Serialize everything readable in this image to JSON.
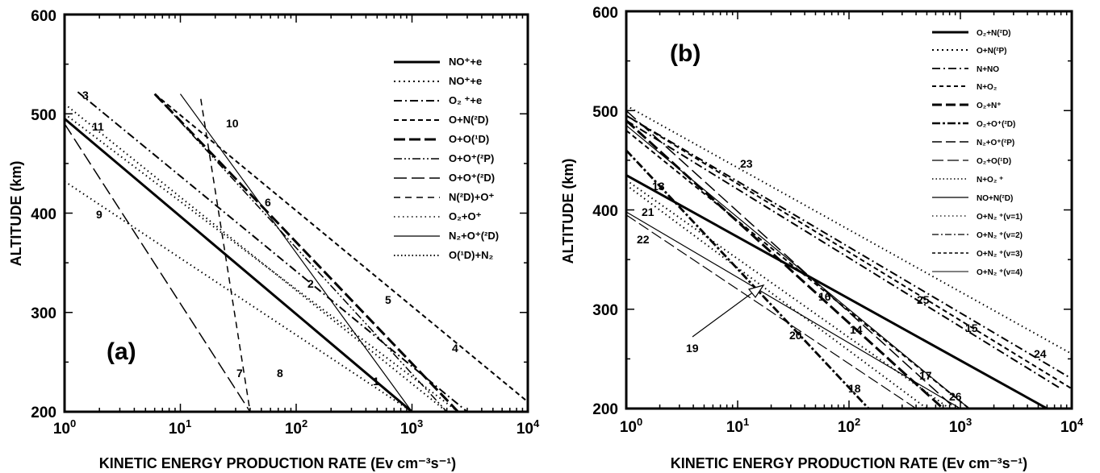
{
  "chart_data": [
    {
      "panel": "(a)",
      "type": "line",
      "xscale": "log",
      "xlim": [
        1,
        10000
      ],
      "ylim": [
        200,
        600
      ],
      "xticks": [
        "10^0",
        "10^1",
        "10^2",
        "10^3",
        "10^4"
      ],
      "yticks": [
        "200",
        "300",
        "400",
        "500",
        "600"
      ],
      "xlabel": "KINETIC ENERGY PRODUCTION RATE (Ev cm-3s-1)",
      "ylabel": "ALTITUDE (km)",
      "legend_position": "top-right",
      "series": [
        {
          "name": "NO+ +e",
          "label": "1",
          "dash": "solid-thick",
          "points": [
            [
              1,
              495
            ],
            [
              1000,
              200
            ]
          ]
        },
        {
          "name": "NO+ +e",
          "label": "2",
          "dash": "dotted",
          "points": [
            [
              1,
              510
            ],
            [
              2000,
              200
            ]
          ]
        },
        {
          "name": "O2 + +e",
          "label": "3",
          "dash": "dashdot",
          "points": [
            [
              1.3,
              522
            ],
            [
              3000,
              200
            ]
          ]
        },
        {
          "name": "O+N(2D)",
          "label": "4",
          "dash": "dashed",
          "points": [
            [
              6,
              520
            ],
            [
              10000,
              210
            ]
          ]
        },
        {
          "name": "O+O(1D)",
          "label": "5",
          "dash": "longdash-thick",
          "points": [
            [
              6,
              520
            ],
            [
              2500,
              200
            ]
          ]
        },
        {
          "name": "O+O+(2P)",
          "label": "6",
          "dash": "dashdotdot",
          "points": [
            [
              6,
              520
            ],
            [
              2000,
              200
            ]
          ]
        },
        {
          "name": "O+O+(2D)",
          "label": "7",
          "dash": "longdash",
          "points": [
            [
              1,
              490
            ],
            [
              40,
              200
            ]
          ]
        },
        {
          "name": "N(2D)+O+",
          "label": "8",
          "dash": "medium-dash",
          "points": [
            [
              15,
              515
            ],
            [
              40,
              200
            ]
          ]
        },
        {
          "name": "O2+O+",
          "label": "9",
          "dash": "dotted",
          "points": [
            [
              1,
              432
            ],
            [
              1000,
              200
            ]
          ]
        },
        {
          "name": "N2+O+(2D)",
          "label": "10",
          "dash": "solid-thin",
          "points": [
            [
              10,
              520
            ],
            [
              1000,
              200
            ]
          ]
        },
        {
          "name": "O(1D)+N2",
          "label": "11",
          "dash": "dotted",
          "points": [
            [
              1,
              500
            ],
            [
              2500,
              200
            ]
          ]
        }
      ]
    },
    {
      "panel": "(b)",
      "type": "line",
      "xscale": "log",
      "xlim": [
        1,
        10000
      ],
      "ylim": [
        200,
        600
      ],
      "xticks": [
        "10^0",
        "10^1",
        "10^2",
        "10^3",
        "10^4"
      ],
      "yticks": [
        "200",
        "300",
        "400",
        "500",
        "600"
      ],
      "xlabel": "KINETIC ENERGY PRODUCTION RATE (Ev cm-3s-1)",
      "ylabel": "ALTITUDE (km)",
      "legend_position": "top-right",
      "series": [
        {
          "name": "O2+N(2D)",
          "label": "13",
          "dash": "solid-thick",
          "points": [
            [
              1,
              435
            ],
            [
              6000,
              200
            ]
          ]
        },
        {
          "name": "O+N(2P)",
          "label": "14",
          "dash": "dotted",
          "points": [
            [
              1,
              430
            ],
            [
              800,
              200
            ]
          ]
        },
        {
          "name": "N+NO",
          "label": "15",
          "dash": "dashdot",
          "points": [
            [
              1,
              490
            ],
            [
              8000,
              220
            ]
          ]
        },
        {
          "name": "N+O2",
          "label": "16",
          "dash": "dashed",
          "points": [
            [
              1,
              480
            ],
            [
              1200,
              200
            ]
          ]
        },
        {
          "name": "O2+N+",
          "label": "17",
          "dash": "longdash-thick",
          "points": [
            [
              1,
              490
            ],
            [
              700,
              200
            ]
          ]
        },
        {
          "name": "O2+O+(2D)",
          "label": "18",
          "dash": "dashdot-thick",
          "points": [
            [
              1,
              460
            ],
            [
              150,
              200
            ]
          ]
        },
        {
          "name": "N2+O+(2P)",
          "label": "19",
          "dash": "longdash",
          "points": [
            [
              1,
              500
            ],
            [
              900,
              200
            ]
          ]
        },
        {
          "name": "O2+O(1D)",
          "label": "20",
          "dash": "longdash-thin",
          "points": [
            [
              1,
              395
            ],
            [
              400,
              200
            ]
          ]
        },
        {
          "name": "N+O2 +",
          "label": "21",
          "dash": "dotted",
          "points": [
            [
              1,
              425
            ],
            [
              500,
              200
            ]
          ]
        },
        {
          "name": "NO+N(2D)",
          "label": "22",
          "dash": "solid-thin",
          "points": [
            [
              1,
              398
            ],
            [
              1000,
              200
            ]
          ]
        },
        {
          "name": "O+N2 +(v=1)",
          "label": "23",
          "dash": "dotted",
          "points": [
            [
              1,
              505
            ],
            [
              10000,
              255
            ]
          ]
        },
        {
          "name": "O+N2 +(v=2)",
          "label": "24",
          "dash": "dashdot",
          "points": [
            [
              1,
              495
            ],
            [
              10000,
              230
            ]
          ]
        },
        {
          "name": "O+N2 +(v=3)",
          "label": "25",
          "dash": "dashed",
          "points": [
            [
              1,
              495
            ],
            [
              10000,
              220
            ]
          ]
        },
        {
          "name": "O+N2 +(v=4)",
          "label": "26",
          "dash": "solid-thin",
          "points": [
            [
              1,
              485
            ],
            [
              1200,
              200
            ]
          ]
        }
      ]
    }
  ],
  "panel_a": {
    "panel_label": "(a)",
    "ylabel": "ALTITUDE (km)",
    "xlabel": "KINETIC ENERGY PRODUCTION RATE (Ev cm⁻³s⁻¹)",
    "yticks": [
      "200",
      "300",
      "400",
      "500",
      "600"
    ],
    "xticks_base": [
      "10",
      "10",
      "10",
      "10",
      "10"
    ],
    "xticks_exp": [
      "0",
      "1",
      "2",
      "3",
      "4"
    ],
    "legend": [
      "NO⁺+e",
      "NO⁺+e",
      "O₂ ⁺+e",
      "O+N(²D)",
      "O+O(¹D)",
      "O+O⁺(²P)",
      "O+O⁺(²D)",
      "N(²D)+O⁺",
      "O₂+O⁺",
      "N₂+O⁺(²D)",
      "O(¹D)+N₂"
    ],
    "curve_labels": {
      "c1": "1",
      "c2": "2",
      "c3": "3",
      "c4": "4",
      "c5": "5",
      "c6": "6",
      "c7": "7",
      "c8": "8",
      "c9": "9",
      "c10": "10",
      "c11": "11"
    }
  },
  "panel_b": {
    "panel_label": "(b)",
    "ylabel": "ALTITUDE (km)",
    "xlabel": "KINETIC ENERGY PRODUCTION RATE (Ev cm⁻³s⁻¹)",
    "yticks": [
      "200",
      "300",
      "400",
      "500",
      "600"
    ],
    "xticks_base": [
      "10",
      "10",
      "10",
      "10",
      "10"
    ],
    "xticks_exp": [
      "0",
      "1",
      "2",
      "3",
      "4"
    ],
    "legend": [
      "O₂+N(²D)",
      "O+N(²P)",
      "N+NO",
      "N+O₂",
      "O₂+N⁺",
      "O₂+O⁺(²D)",
      "N₂+O⁺(²P)",
      "O₂+O(¹D)",
      "N+O₂ ⁺",
      "NO+N(²D)",
      "O+N₂ ⁺(v=1)",
      "O+N₂ ⁺(v=2)",
      "O+N₂ ⁺(v=3)",
      "O+N₂ ⁺(v=4)"
    ],
    "curve_labels": {
      "c13": "13",
      "c14": "14",
      "c15": "15",
      "c16": "16",
      "c17": "17",
      "c18": "18",
      "c19": "19",
      "c20": "20",
      "c21": "21",
      "c22": "22",
      "c23": "23",
      "c24": "24",
      "c25": "25",
      "c26": "26"
    }
  }
}
